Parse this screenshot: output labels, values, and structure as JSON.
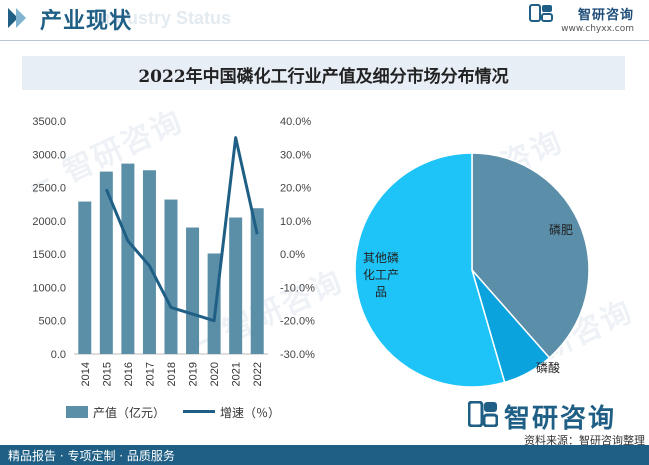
{
  "header": {
    "title": "产业现状",
    "title_en": "Industry Status",
    "brand_name": "智研咨询",
    "brand_url": "www.chyxx.com"
  },
  "chart_title": "2022年中国磷化工行业产值及细分市场分布情况",
  "watermark_text": "智研咨询",
  "chart_data": [
    {
      "type": "bar+line",
      "categories": [
        "2014",
        "2015",
        "2016",
        "2017",
        "2018",
        "2019",
        "2020",
        "2021",
        "2022"
      ],
      "series": [
        {
          "name": "产值（亿元）",
          "type": "bar",
          "axis": "left",
          "values": [
            2290,
            2740,
            2860,
            2760,
            2320,
            1900,
            1510,
            2050,
            2190
          ]
        },
        {
          "name": "增速（%）",
          "type": "line",
          "axis": "right",
          "values": [
            null,
            19.5,
            4.0,
            -3.5,
            -16.0,
            -18.0,
            -20.0,
            35.0,
            6.0
          ]
        }
      ],
      "left_axis": {
        "ylim": [
          0,
          3500
        ],
        "ticks": [
          "0.0",
          "500.0",
          "1000.0",
          "1500.0",
          "2000.0",
          "2500.0",
          "3000.0",
          "3500.0"
        ]
      },
      "right_axis": {
        "ylim": [
          -30,
          40
        ],
        "ticks": [
          "-30.0%",
          "-20.0%",
          "-10.0%",
          "0.0%",
          "10.0%",
          "20.0%",
          "30.0%",
          "40.0%"
        ]
      },
      "legend": [
        {
          "label": "产值（亿元）",
          "kind": "bar"
        },
        {
          "label": "增速（%）",
          "kind": "line"
        }
      ],
      "colors": {
        "bar": "#5b8fa8",
        "line": "#1f5f85"
      }
    },
    {
      "type": "pie",
      "slices": [
        {
          "label": "磷肥",
          "value": 38.5,
          "color": "#5a8ea9"
        },
        {
          "label": "磷酸",
          "value": 7.0,
          "color": "#0aa3de"
        },
        {
          "label": "其他磷化工产品",
          "value": 54.5,
          "color": "#1ec3f7"
        }
      ]
    }
  ],
  "legend_labels": {
    "bar": "产值（亿元）",
    "line": "增速（％）"
  },
  "pie_labels": {
    "fertilizer": "磷肥",
    "acid": "磷酸",
    "other_line1": "其他磷",
    "other_line2": "化工产",
    "other_line3": "品"
  },
  "footer": {
    "left": "精品报告 · 专项定制 · 品质服务",
    "source": "资料来源：智研咨询整理",
    "brand": "智研咨询"
  }
}
